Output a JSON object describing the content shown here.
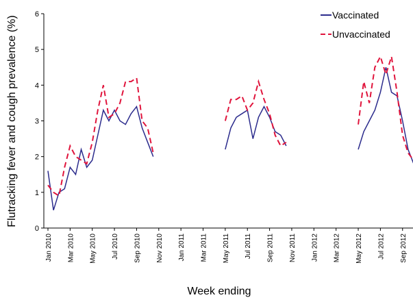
{
  "chart_data": {
    "type": "line",
    "x_label": "Week ending",
    "y_label": "Flutracking fever and cough prevalence (%)",
    "categories": [
      "Jan 2010",
      null,
      null,
      null,
      "Mar 2010",
      null,
      null,
      null,
      "May 2010",
      null,
      null,
      null,
      "Jul 2010",
      null,
      null,
      null,
      "Sep 2010",
      null,
      null,
      null,
      "Nov 2010",
      null,
      null,
      null,
      "Jan 2011",
      null,
      null,
      null,
      "Mar 2011",
      null,
      null,
      null,
      "May 2011",
      null,
      null,
      null,
      "Jul 2011",
      null,
      null,
      null,
      "Sep 2011",
      null,
      null,
      null,
      "Nov 2011",
      null,
      null,
      null,
      "Jan 2012",
      null,
      null,
      null,
      "Mar 2012",
      null,
      null,
      null,
      "May 2012",
      null,
      null,
      null,
      "Jul 2012",
      null,
      null,
      null,
      "Sep 2012",
      null,
      null
    ],
    "series": [
      {
        "name": "Vaccinated",
        "color": "#2b2b8c",
        "dashed": false,
        "values": [
          1.6,
          0.5,
          1.0,
          1.1,
          1.7,
          1.5,
          2.2,
          1.7,
          1.9,
          2.6,
          3.3,
          3.0,
          3.3,
          3.0,
          2.9,
          3.2,
          3.4,
          2.8,
          2.4,
          2.0,
          null,
          null,
          null,
          null,
          null,
          null,
          null,
          null,
          null,
          null,
          null,
          null,
          2.2,
          2.8,
          3.1,
          3.2,
          3.3,
          2.5,
          3.1,
          3.4,
          3.1,
          2.7,
          2.6,
          2.3,
          null,
          null,
          null,
          null,
          null,
          null,
          null,
          null,
          null,
          null,
          null,
          null,
          2.2,
          2.7,
          3.0,
          3.3,
          3.8,
          4.5,
          3.8,
          3.7,
          3.0,
          2.2,
          1.8
        ]
      },
      {
        "name": "Unvaccinated",
        "color": "#e0143c",
        "dashed": true,
        "values": [
          1.2,
          1.0,
          0.9,
          1.7,
          2.3,
          2.0,
          1.9,
          1.8,
          2.4,
          3.3,
          4.0,
          3.1,
          3.2,
          3.5,
          4.1,
          4.1,
          4.2,
          3.0,
          2.8,
          2.1,
          null,
          null,
          null,
          null,
          null,
          null,
          null,
          null,
          null,
          null,
          null,
          null,
          3.0,
          3.6,
          3.6,
          3.7,
          3.3,
          3.5,
          4.1,
          3.6,
          3.2,
          2.6,
          2.3,
          2.4,
          null,
          null,
          null,
          null,
          null,
          null,
          null,
          null,
          null,
          null,
          null,
          null,
          2.9,
          4.1,
          3.5,
          4.5,
          4.8,
          4.3,
          4.8,
          3.8,
          2.6,
          2.1,
          1.9
        ]
      }
    ],
    "ylim": [
      0,
      6
    ],
    "yticks": [
      0,
      1,
      2,
      3,
      4,
      5,
      6
    ],
    "legend": "top-right"
  }
}
